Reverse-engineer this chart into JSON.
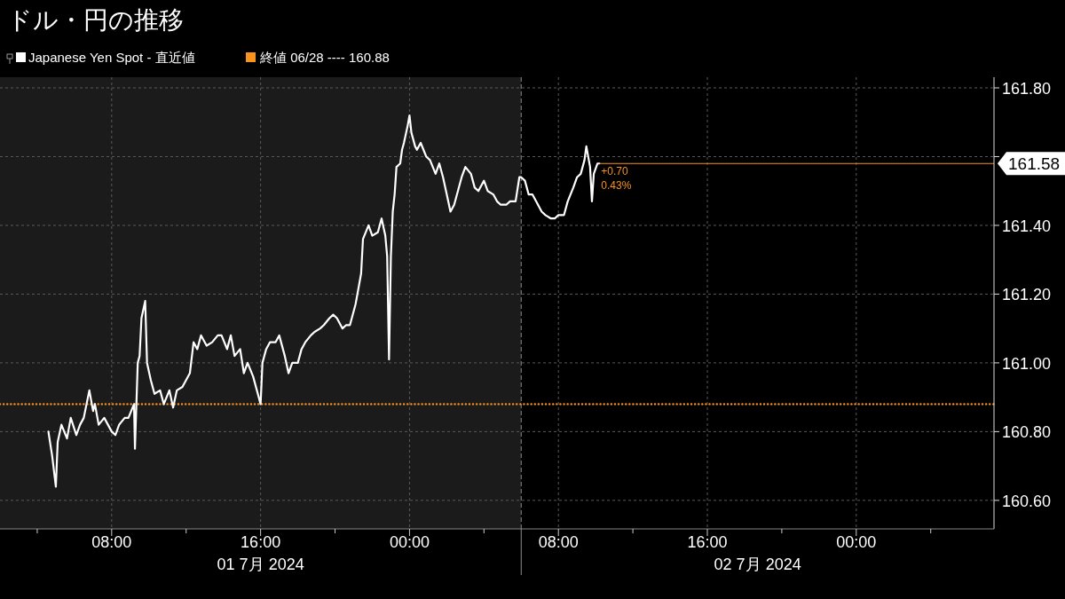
{
  "chart_data": {
    "type": "line",
    "title": "ドル・円の推移",
    "legend": "top left",
    "grid": true,
    "xlim": [
      "2024-07-01T02:00",
      "2024-07-03T07:24"
    ],
    "ylim": [
      160.517,
      161.831
    ],
    "xticks": [
      {
        "value": "2024-07-01T04:00",
        "label": null
      },
      {
        "value": "2024-07-01T08:00",
        "label": "08:00"
      },
      {
        "value": "2024-07-01T12:00",
        "label": null
      },
      {
        "value": "2024-07-01T16:00",
        "label": "16:00"
      },
      {
        "value": "2024-07-01T20:00",
        "label": null
      },
      {
        "value": "2024-07-02T00:00",
        "label": "00:00"
      },
      {
        "value": "2024-07-02T04:00",
        "label": null
      },
      {
        "value": "2024-07-02T08:00",
        "label": "08:00"
      },
      {
        "value": "2024-07-02T12:00",
        "label": null
      },
      {
        "value": "2024-07-02T16:00",
        "label": "16:00"
      },
      {
        "value": "2024-07-02T20:00",
        "label": null
      },
      {
        "value": "2024-07-03T00:00",
        "label": "00:00"
      },
      {
        "value": "2024-07-03T04:00",
        "label": null
      }
    ],
    "yticks": [
      {
        "value": 160.6,
        "label": "160.60"
      },
      {
        "value": 160.8,
        "label": "160.80"
      },
      {
        "value": 161,
        "label": "161.00"
      },
      {
        "value": 161.2,
        "label": "161.20"
      },
      {
        "value": 161.4,
        "label": "161.40"
      },
      {
        "value": 161.6,
        "label": null
      },
      {
        "value": 161.8,
        "label": "161.80"
      }
    ],
    "bands": [
      {
        "axis": "x",
        "from": "2024-07-01T02:00",
        "to": "2024-07-02T06:00",
        "color": "#1b1b1b"
      }
    ],
    "ref_lines": [
      {
        "axis": "y",
        "value": 160.88,
        "label": "終値 06/28 ---- 160.88",
        "color": "#f7931e",
        "line_style": "dotted"
      },
      {
        "axis": "y",
        "value": 161.58,
        "label": "161.58",
        "color": "#f7931e",
        "line_style": "solid"
      },
      {
        "axis": "x",
        "value": "2024-07-02T06:00",
        "color": "#8a8a8a",
        "line_style": "dashed"
      }
    ],
    "annotations": [
      "01 7月 2024",
      "02 7月 2024",
      "+0.70",
      "0.43%"
    ],
    "series": [
      {
        "name": "Japanese Yen Spot - 直近値",
        "color": "#ffffff",
        "x": [
          "2024-07-01T04:36",
          "2024-07-01T04:48",
          "2024-07-01T05:00",
          "2024-07-01T05:06",
          "2024-07-01T05:18",
          "2024-07-01T05:36",
          "2024-07-01T05:48",
          "2024-07-01T06:06",
          "2024-07-01T06:18",
          "2024-07-01T06:30",
          "2024-07-01T06:48",
          "2024-07-01T07:00",
          "2024-07-01T07:06",
          "2024-07-01T07:18",
          "2024-07-01T07:36",
          "2024-07-01T08:00",
          "2024-07-01T08:12",
          "2024-07-01T08:24",
          "2024-07-01T08:42",
          "2024-07-01T08:54",
          "2024-07-01T09:12",
          "2024-07-01T09:15",
          "2024-07-01T09:24",
          "2024-07-01T09:30",
          "2024-07-01T09:36",
          "2024-07-01T09:48",
          "2024-07-01T09:54",
          "2024-07-01T10:06",
          "2024-07-01T10:18",
          "2024-07-01T10:36",
          "2024-07-01T10:48",
          "2024-07-01T11:06",
          "2024-07-01T11:18",
          "2024-07-01T11:30",
          "2024-07-01T11:48",
          "2024-07-01T12:00",
          "2024-07-01T12:12",
          "2024-07-01T12:24",
          "2024-07-01T12:36",
          "2024-07-01T12:48",
          "2024-07-01T13:06",
          "2024-07-01T13:24",
          "2024-07-01T13:42",
          "2024-07-01T13:54",
          "2024-07-01T14:12",
          "2024-07-01T14:24",
          "2024-07-01T14:36",
          "2024-07-01T14:54",
          "2024-07-01T15:06",
          "2024-07-01T15:18",
          "2024-07-01T15:36",
          "2024-07-01T15:48",
          "2024-07-01T16:00",
          "2024-07-01T16:06",
          "2024-07-01T16:18",
          "2024-07-01T16:30",
          "2024-07-01T16:48",
          "2024-07-01T17:00",
          "2024-07-01T17:18",
          "2024-07-01T17:30",
          "2024-07-01T17:42",
          "2024-07-01T18:00",
          "2024-07-01T18:12",
          "2024-07-01T18:24",
          "2024-07-01T18:42",
          "2024-07-01T18:54",
          "2024-07-01T19:12",
          "2024-07-01T19:24",
          "2024-07-01T19:42",
          "2024-07-01T19:54",
          "2024-07-01T20:06",
          "2024-07-01T20:24",
          "2024-07-01T20:36",
          "2024-07-01T20:48",
          "2024-07-01T21:06",
          "2024-07-01T21:12",
          "2024-07-01T21:24",
          "2024-07-01T21:30",
          "2024-07-01T21:48",
          "2024-07-01T22:00",
          "2024-07-01T22:18",
          "2024-07-01T22:30",
          "2024-07-01T22:42",
          "2024-07-01T22:48",
          "2024-07-01T22:54",
          "2024-07-01T23:00",
          "2024-07-01T23:06",
          "2024-07-01T23:12",
          "2024-07-01T23:18",
          "2024-07-01T23:30",
          "2024-07-01T23:36",
          "2024-07-01T23:42",
          "2024-07-01T23:54",
          "2024-07-02T00:00",
          "2024-07-02T00:06",
          "2024-07-02T00:18",
          "2024-07-02T00:24",
          "2024-07-02T00:36",
          "2024-07-02T00:54",
          "2024-07-02T01:06",
          "2024-07-02T01:24",
          "2024-07-02T01:36",
          "2024-07-02T01:48",
          "2024-07-02T02:00",
          "2024-07-02T02:12",
          "2024-07-02T02:24",
          "2024-07-02T02:36",
          "2024-07-02T02:48",
          "2024-07-02T03:00",
          "2024-07-02T03:18",
          "2024-07-02T03:30",
          "2024-07-02T03:42",
          "2024-07-02T04:00",
          "2024-07-02T04:12",
          "2024-07-02T04:30",
          "2024-07-02T04:42",
          "2024-07-02T04:54",
          "2024-07-02T05:12",
          "2024-07-02T05:24",
          "2024-07-02T05:42",
          "2024-07-02T05:54",
          "2024-07-02T06:00",
          "2024-07-02T06:12",
          "2024-07-02T06:24",
          "2024-07-02T06:36",
          "2024-07-02T06:48",
          "2024-07-02T07:06",
          "2024-07-02T07:18",
          "2024-07-02T07:36",
          "2024-07-02T07:48",
          "2024-07-02T08:00",
          "2024-07-02T08:18",
          "2024-07-02T08:30",
          "2024-07-02T08:48",
          "2024-07-02T09:00",
          "2024-07-02T09:12",
          "2024-07-02T09:24",
          "2024-07-02T09:30",
          "2024-07-02T09:42",
          "2024-07-02T09:48",
          "2024-07-02T09:54",
          "2024-07-02T10:06",
          "2024-07-02T10:12"
        ],
        "values": [
          160.8,
          160.73,
          160.64,
          160.77,
          160.82,
          160.78,
          160.84,
          160.79,
          160.82,
          160.84,
          160.92,
          160.86,
          160.88,
          160.82,
          160.84,
          160.8,
          160.79,
          160.82,
          160.84,
          160.84,
          160.88,
          160.75,
          161.0,
          161.02,
          161.13,
          161.18,
          161.0,
          160.95,
          160.91,
          160.92,
          160.88,
          160.92,
          160.87,
          160.92,
          160.93,
          160.95,
          160.97,
          161.06,
          161.04,
          161.08,
          161.05,
          161.06,
          161.08,
          161.08,
          161.04,
          161.08,
          161.02,
          161.04,
          160.97,
          161.0,
          160.96,
          160.92,
          160.88,
          161.0,
          161.04,
          161.06,
          161.06,
          161.08,
          161.02,
          160.97,
          161.0,
          161.0,
          161.04,
          161.06,
          161.08,
          161.09,
          161.1,
          161.11,
          161.13,
          161.14,
          161.13,
          161.1,
          161.11,
          161.11,
          161.17,
          161.2,
          161.26,
          161.36,
          161.4,
          161.37,
          161.38,
          161.42,
          161.37,
          161.31,
          161.01,
          161.31,
          161.44,
          161.49,
          161.57,
          161.58,
          161.62,
          161.64,
          161.69,
          161.72,
          161.67,
          161.63,
          161.62,
          161.64,
          161.6,
          161.59,
          161.55,
          161.58,
          161.54,
          161.49,
          161.44,
          161.46,
          161.5,
          161.54,
          161.57,
          161.55,
          161.51,
          161.5,
          161.53,
          161.5,
          161.49,
          161.47,
          161.46,
          161.46,
          161.47,
          161.47,
          161.54,
          161.54,
          161.53,
          161.49,
          161.49,
          161.47,
          161.44,
          161.43,
          161.42,
          161.42,
          161.43,
          161.43,
          161.47,
          161.51,
          161.54,
          161.55,
          161.59,
          161.63,
          161.57,
          161.47,
          161.55,
          161.58,
          161.58
        ]
      }
    ]
  }
}
